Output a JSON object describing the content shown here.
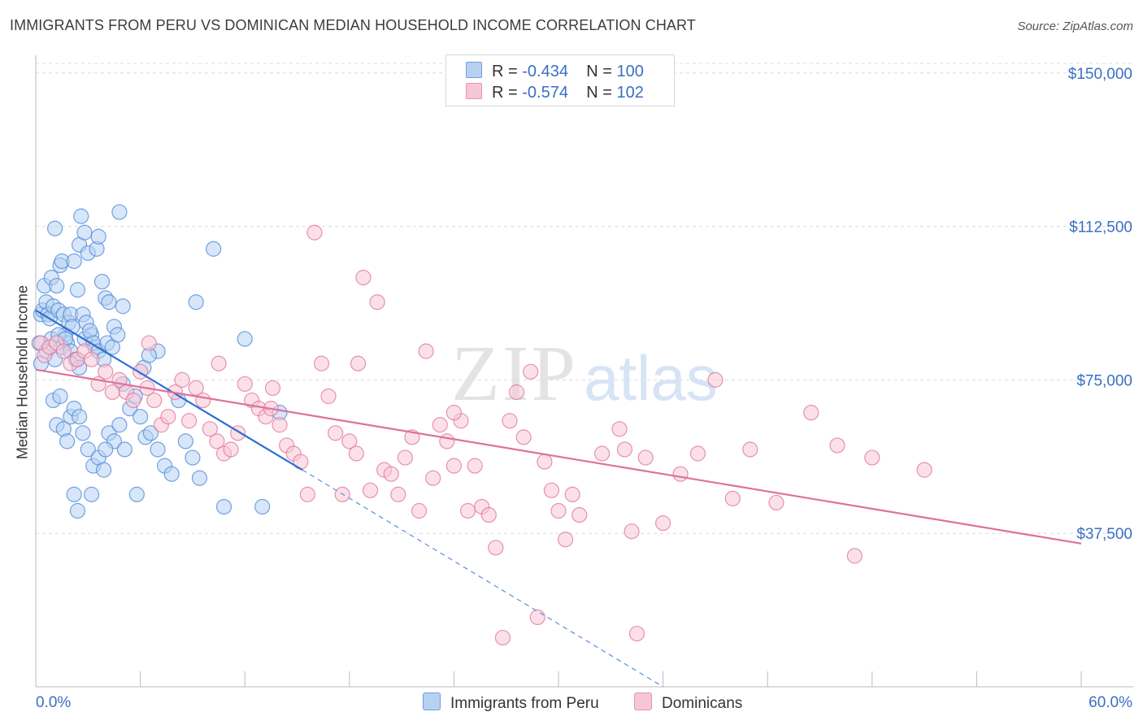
{
  "title": "IMMIGRANTS FROM PERU VS DOMINICAN MEDIAN HOUSEHOLD INCOME CORRELATION CHART",
  "source": "Source: ZipAtlas.com",
  "watermark": {
    "zip": "ZIP",
    "atlas": "atlas"
  },
  "legend": {
    "rows": [
      {
        "r_label": "R = ",
        "r_value": "-0.434",
        "n_label": "N = ",
        "n_value": "100",
        "color": "#a9c8f0"
      },
      {
        "r_label": "R = ",
        "r_value": "-0.574",
        "n_label": "N = ",
        "n_value": "102",
        "color": "#f7bfd0"
      }
    ]
  },
  "chart_data": {
    "type": "scatter",
    "xlabel": "",
    "ylabel": "Median Household Income",
    "x_tick_labels": [
      "0.0%",
      "60.0%"
    ],
    "y_tick_labels": [
      "$150,000",
      "$112,500",
      "$75,000",
      "$37,500"
    ],
    "y_ticks": [
      150000,
      112500,
      75000,
      37500
    ],
    "xlim": [
      0,
      60
    ],
    "ylim": [
      0,
      157500
    ],
    "grid": true,
    "legend_position": "bottom",
    "series": [
      {
        "name": "Immigrants from Peru",
        "color": "#4a86d8",
        "fill": "#b7d1f3",
        "trend": {
          "x": [
            0,
            15.3
          ],
          "y": [
            92000,
            53000
          ],
          "dashed_to": [
            36,
            0
          ]
        },
        "points": [
          [
            0.3,
            91
          ],
          [
            0.4,
            92
          ],
          [
            0.5,
            98
          ],
          [
            0.6,
            94
          ],
          [
            0.7,
            91
          ],
          [
            0.8,
            90
          ],
          [
            0.9,
            100
          ],
          [
            1.0,
            93
          ],
          [
            1.1,
            112
          ],
          [
            1.2,
            98
          ],
          [
            1.3,
            92
          ],
          [
            1.4,
            103
          ],
          [
            1.5,
            104
          ],
          [
            1.6,
            91
          ],
          [
            1.7,
            86
          ],
          [
            1.8,
            84
          ],
          [
            1.9,
            89
          ],
          [
            2.0,
            91
          ],
          [
            2.1,
            88
          ],
          [
            2.2,
            104
          ],
          [
            2.4,
            97
          ],
          [
            2.5,
            108
          ],
          [
            2.6,
            115
          ],
          [
            2.7,
            91
          ],
          [
            2.8,
            111
          ],
          [
            2.9,
            89
          ],
          [
            3.0,
            106
          ],
          [
            3.2,
            86
          ],
          [
            3.4,
            83
          ],
          [
            3.5,
            107
          ],
          [
            3.6,
            110
          ],
          [
            3.8,
            99
          ],
          [
            4.0,
            95
          ],
          [
            4.2,
            94
          ],
          [
            4.5,
            88
          ],
          [
            4.8,
            116
          ],
          [
            5.0,
            93
          ],
          [
            0.2,
            84
          ],
          [
            0.3,
            79
          ],
          [
            0.6,
            82
          ],
          [
            0.9,
            85
          ],
          [
            1.1,
            80
          ],
          [
            1.3,
            86
          ],
          [
            1.5,
            83
          ],
          [
            1.7,
            85
          ],
          [
            2.0,
            82
          ],
          [
            2.3,
            80
          ],
          [
            2.5,
            78
          ],
          [
            2.8,
            85
          ],
          [
            3.1,
            87
          ],
          [
            3.3,
            84
          ],
          [
            3.6,
            82
          ],
          [
            3.9,
            80
          ],
          [
            4.1,
            84
          ],
          [
            4.4,
            83
          ],
          [
            4.7,
            86
          ],
          [
            1.0,
            70
          ],
          [
            1.2,
            64
          ],
          [
            1.4,
            71
          ],
          [
            1.6,
            63
          ],
          [
            1.8,
            60
          ],
          [
            2.0,
            66
          ],
          [
            2.2,
            68
          ],
          [
            2.5,
            66
          ],
          [
            2.7,
            62
          ],
          [
            3.0,
            58
          ],
          [
            3.3,
            54
          ],
          [
            3.6,
            56
          ],
          [
            3.9,
            53
          ],
          [
            4.2,
            62
          ],
          [
            4.5,
            60
          ],
          [
            4.8,
            64
          ],
          [
            5.1,
            58
          ],
          [
            5.4,
            68
          ],
          [
            5.7,
            71
          ],
          [
            6.0,
            66
          ],
          [
            6.3,
            61
          ],
          [
            6.6,
            62
          ],
          [
            7.0,
            58
          ],
          [
            7.4,
            54
          ],
          [
            7.8,
            52
          ],
          [
            8.2,
            70
          ],
          [
            8.6,
            60
          ],
          [
            9.0,
            56
          ],
          [
            9.4,
            51
          ],
          [
            2.2,
            47
          ],
          [
            2.4,
            43
          ],
          [
            3.2,
            47
          ],
          [
            4.0,
            58
          ],
          [
            5.0,
            74
          ],
          [
            6.2,
            78
          ],
          [
            7.0,
            82
          ],
          [
            5.8,
            47
          ],
          [
            9.2,
            94
          ],
          [
            10.2,
            107
          ],
          [
            10.8,
            44
          ],
          [
            12.0,
            85
          ],
          [
            13.0,
            44
          ],
          [
            6.5,
            81
          ],
          [
            14.0,
            67
          ]
        ]
      },
      {
        "name": "Dominicans",
        "color": "#e0709a",
        "fill": "#f7c6d6",
        "trend": {
          "x": [
            0,
            60
          ],
          "y": [
            77500,
            35000
          ]
        },
        "points": [
          [
            0.3,
            84
          ],
          [
            0.5,
            81
          ],
          [
            0.8,
            83
          ],
          [
            1.2,
            84
          ],
          [
            1.6,
            82
          ],
          [
            2.0,
            79
          ],
          [
            2.4,
            80
          ],
          [
            2.8,
            82
          ],
          [
            3.2,
            80
          ],
          [
            3.6,
            74
          ],
          [
            4.0,
            77
          ],
          [
            4.4,
            72
          ],
          [
            4.8,
            75
          ],
          [
            5.2,
            72
          ],
          [
            5.6,
            70
          ],
          [
            6.0,
            77
          ],
          [
            6.4,
            73
          ],
          [
            6.8,
            70
          ],
          [
            7.2,
            64
          ],
          [
            7.6,
            66
          ],
          [
            8.0,
            72
          ],
          [
            8.4,
            75
          ],
          [
            8.8,
            65
          ],
          [
            9.2,
            73
          ],
          [
            9.6,
            70
          ],
          [
            10.0,
            63
          ],
          [
            10.4,
            60
          ],
          [
            10.8,
            57
          ],
          [
            11.2,
            58
          ],
          [
            11.6,
            62
          ],
          [
            12.0,
            74
          ],
          [
            12.4,
            70
          ],
          [
            12.8,
            68
          ],
          [
            13.2,
            66
          ],
          [
            13.6,
            73
          ],
          [
            14.0,
            64
          ],
          [
            14.4,
            59
          ],
          [
            14.8,
            57
          ],
          [
            15.2,
            55
          ],
          [
            15.6,
            47
          ],
          [
            16.0,
            111
          ],
          [
            16.4,
            79
          ],
          [
            16.8,
            71
          ],
          [
            17.2,
            62
          ],
          [
            17.6,
            47
          ],
          [
            18.0,
            60
          ],
          [
            18.4,
            57
          ],
          [
            18.8,
            100
          ],
          [
            19.2,
            48
          ],
          [
            19.6,
            94
          ],
          [
            20.0,
            53
          ],
          [
            20.4,
            52
          ],
          [
            20.8,
            47
          ],
          [
            21.2,
            56
          ],
          [
            21.6,
            61
          ],
          [
            22.0,
            43
          ],
          [
            22.4,
            82
          ],
          [
            22.8,
            51
          ],
          [
            23.2,
            64
          ],
          [
            23.6,
            60
          ],
          [
            24.0,
            54
          ],
          [
            24.4,
            65
          ],
          [
            24.8,
            43
          ],
          [
            25.2,
            54
          ],
          [
            25.6,
            44
          ],
          [
            26.0,
            42
          ],
          [
            26.4,
            34
          ],
          [
            26.8,
            12
          ],
          [
            27.2,
            65
          ],
          [
            27.6,
            72
          ],
          [
            28.0,
            61
          ],
          [
            28.4,
            77
          ],
          [
            28.8,
            17
          ],
          [
            29.2,
            55
          ],
          [
            29.6,
            48
          ],
          [
            30.0,
            43
          ],
          [
            30.4,
            36
          ],
          [
            30.8,
            47
          ],
          [
            31.2,
            42
          ],
          [
            32.5,
            57
          ],
          [
            33.5,
            63
          ],
          [
            33.8,
            58
          ],
          [
            34.2,
            38
          ],
          [
            35.0,
            56
          ],
          [
            36.0,
            40
          ],
          [
            37.0,
            52
          ],
          [
            38.0,
            57
          ],
          [
            39.0,
            75
          ],
          [
            40.0,
            46
          ],
          [
            41.0,
            58
          ],
          [
            42.5,
            45
          ],
          [
            44.5,
            67
          ],
          [
            46.0,
            59
          ],
          [
            47.0,
            32
          ],
          [
            48.0,
            56
          ],
          [
            51.0,
            53
          ],
          [
            34.5,
            13
          ],
          [
            13.5,
            68
          ],
          [
            6.5,
            84
          ],
          [
            10.5,
            79
          ],
          [
            18.5,
            79
          ],
          [
            24.0,
            67
          ]
        ]
      }
    ]
  }
}
